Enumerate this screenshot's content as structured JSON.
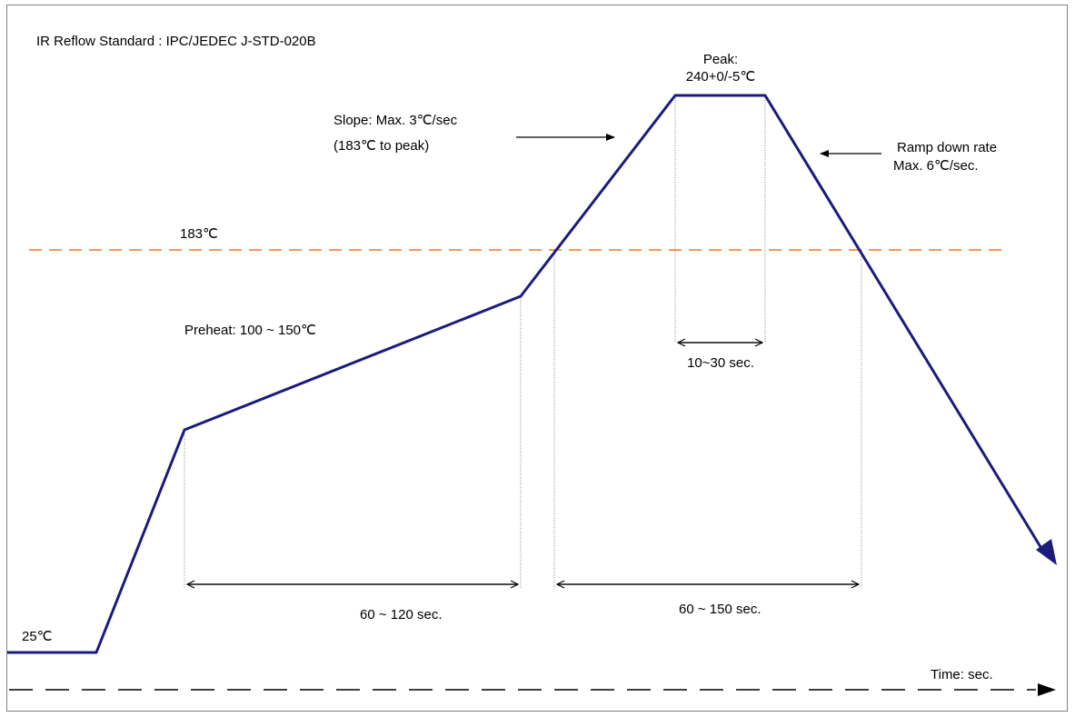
{
  "title": "IR Reflow Standard : IPC/JEDEC J-STD-020B",
  "peak": {
    "label": "Peak:",
    "value": "240+0/-5℃"
  },
  "slope": {
    "line1": "Slope: Max. 3℃/sec",
    "line2": "(183℃ to peak)"
  },
  "ramp_down": {
    "line1": "Ramp down rate",
    "line2": "Max. 6℃/sec."
  },
  "liquidus_label": "183℃",
  "preheat_label": "Preheat: 100 ~ 150℃",
  "start_temp_label": "25℃",
  "peak_duration_label": "10~30 sec.",
  "preheat_duration_label": "60 ~ 120 sec.",
  "liquidus_duration_label": "60 ~ 150 sec.",
  "time_axis_label": "Time: sec.",
  "colors": {
    "profile": "#1b1b7e",
    "liquidus_line": "#f07820",
    "axis": "#000000",
    "guides": "#808080"
  }
}
